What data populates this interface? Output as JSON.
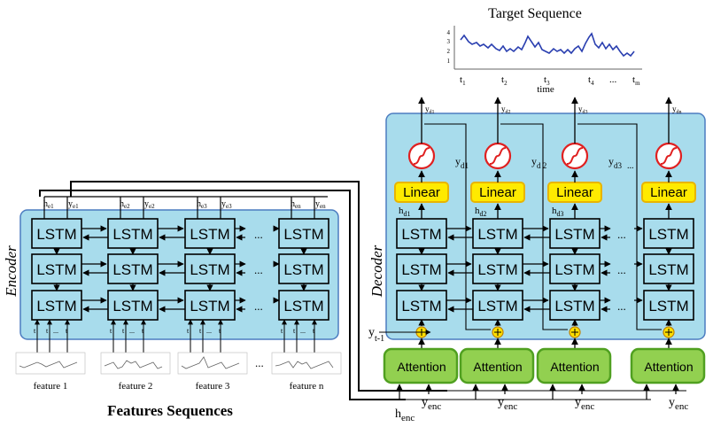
{
  "title": "Target Sequence",
  "target_plot": {
    "time_label": "time",
    "y_ticks": [
      "4",
      "3",
      "2",
      "1"
    ],
    "t_ticks": [
      "t",
      "t",
      "t",
      "t",
      "...",
      "t"
    ],
    "t_subs": [
      "1",
      "2",
      "3",
      "4",
      "",
      "m"
    ]
  },
  "encoder": {
    "label": "Encoder",
    "cell_label": "LSTM",
    "ellipsis": "...",
    "hidden_outputs": [
      "e1",
      "e2",
      "e3",
      "en"
    ],
    "outputs": [
      "e1",
      "e2",
      "e3",
      "en"
    ],
    "h": "h",
    "y": "y",
    "input_ticks": [
      "t",
      "t",
      "...",
      "t"
    ],
    "feature_labels": [
      "feature 1",
      "feature 2",
      "feature 3",
      "feature n"
    ],
    "feature_ellipsis": "..."
  },
  "features_title": "Features Sequences",
  "decoder": {
    "label": "Decoder",
    "cell_label": "LSTM",
    "linear_label": "Linear",
    "attention_label": "Attention",
    "ellipsis": "...",
    "output_subs": [
      "d1",
      "d2",
      "d3",
      "dn"
    ],
    "side_outputs": [
      "d1",
      "d 2",
      "d3"
    ],
    "side_ellipsis": "...",
    "hidden": [
      "d1",
      "d2",
      "d3"
    ],
    "prev_input": "y",
    "prev_sub": "t-1",
    "h_enc_main": "h",
    "enc_sub": "enc",
    "y_enc": "y"
  },
  "colors": {
    "block_fill": "#a8dcec",
    "block_border": "#4c7cc0",
    "linear_fill": "#ffea00",
    "linear_border": "#e8b400",
    "attention_fill": "#92d050",
    "attention_border": "#50a020",
    "sigmoid": "#e02020",
    "adder_fill": "#ffe000"
  }
}
